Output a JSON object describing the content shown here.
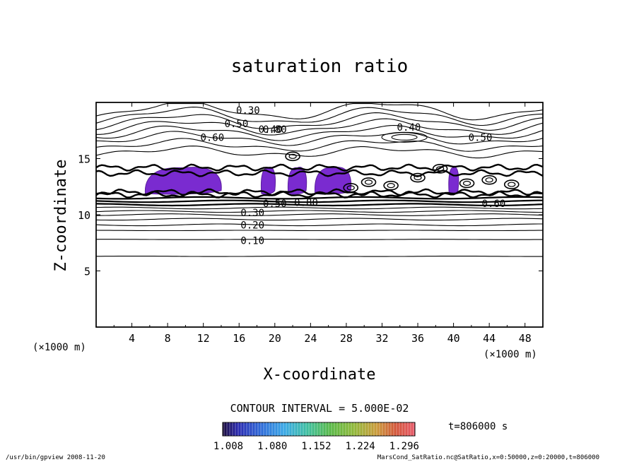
{
  "chart_data": {
    "type": "contour",
    "title": "saturation ratio",
    "xlabel": "X-coordinate",
    "ylabel": "Z-coordinate",
    "x_unit_left": "(×1000 m)",
    "x_unit_right": "(×1000 m)",
    "xlim": [
      0,
      50
    ],
    "ylim": [
      0,
      20
    ],
    "x_ticks": [
      4,
      8,
      12,
      16,
      20,
      24,
      28,
      32,
      36,
      40,
      44,
      48
    ],
    "y_ticks": [
      5,
      10,
      15
    ],
    "contour_interval_text": "CONTOUR INTERVAL = 5.000E-02",
    "time_text": "t=806000 s",
    "colorbar_ticks": [
      "1.008",
      "1.080",
      "1.152",
      "1.224",
      "1.296"
    ],
    "colorbar_range": [
      1.008,
      1.296
    ],
    "contour_labels": [
      {
        "text": "0.30",
        "x": 17.0,
        "z": 19.3
      },
      {
        "text": "0.50",
        "x": 15.7,
        "z": 18.1
      },
      {
        "text": "0.40",
        "x": 19.5,
        "z": 17.6
      },
      {
        "text": "0.80",
        "x": 20.0,
        "z": 17.6
      },
      {
        "text": "0.40",
        "x": 35.0,
        "z": 17.8
      },
      {
        "text": "0.60",
        "x": 13.0,
        "z": 16.9
      },
      {
        "text": "0.50",
        "x": 43.0,
        "z": 16.9
      },
      {
        "text": "0.50",
        "x": 20.0,
        "z": 11.0
      },
      {
        "text": "0.80",
        "x": 23.5,
        "z": 11.1
      },
      {
        "text": "0.60",
        "x": 44.5,
        "z": 11.0
      },
      {
        "text": "0.30",
        "x": 17.5,
        "z": 10.2
      },
      {
        "text": "0.20",
        "x": 17.5,
        "z": 9.1
      },
      {
        "text": "0.10",
        "x": 17.5,
        "z": 7.7
      }
    ],
    "shaded_regions_x": [
      [
        5.5,
        14.0
      ],
      [
        18.5,
        20.0
      ],
      [
        21.5,
        23.5
      ],
      [
        24.5,
        28.5
      ],
      [
        39.5,
        40.5
      ]
    ]
  },
  "footer": {
    "left": "/usr/bin/gpview  2008-11-20",
    "right": "MarsCond_SatRatio.nc@SatRatio,x=0:50000,z=0:20000,t=806000"
  },
  "colors": {
    "shade_main": "#7a2bd0",
    "shade_dark": "#5a1f9c",
    "line": "#000000"
  }
}
